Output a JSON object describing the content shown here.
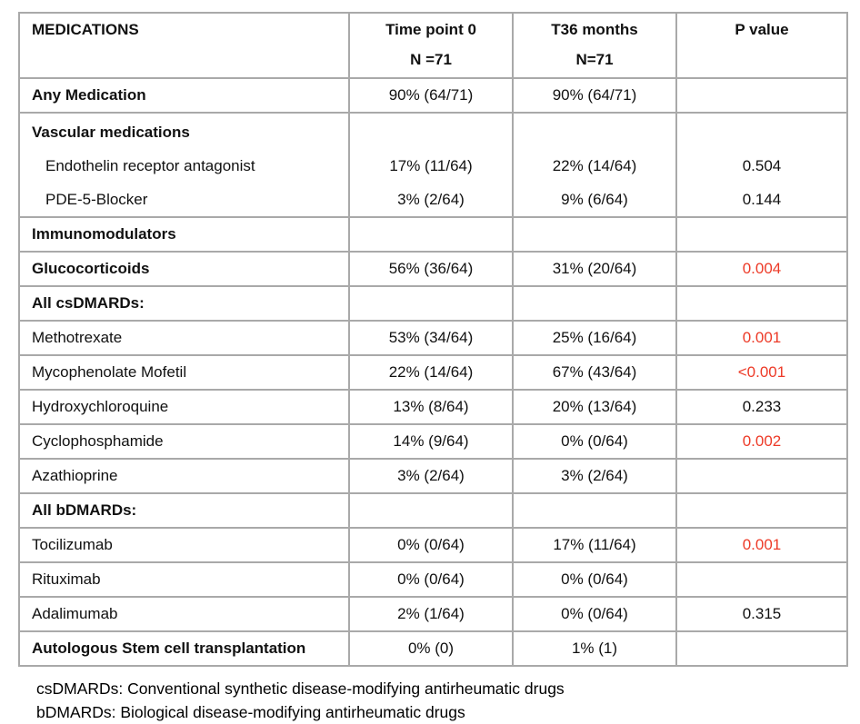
{
  "colors": {
    "p_value_red": "#ed3a27",
    "table_border_gray": "#a9a9a9"
  },
  "table": {
    "headers": {
      "col1": "MEDICATIONS",
      "col2_line1": "Time point 0",
      "col2_line2": "N =71",
      "col3_line1": "T36 months",
      "col3_line2": "N=71",
      "col4": "P value"
    },
    "rows": [
      {
        "style": "section",
        "label": "Any Medication",
        "t0": "90% (64/71)",
        "t36": "90% (64/71)",
        "p": "",
        "p_red": false
      },
      {
        "style": "multi",
        "lines": [
          {
            "style": "section",
            "label": "Vascular medications",
            "t0": "",
            "t36": "",
            "p": "",
            "p_red": false
          },
          {
            "style": "drug",
            "label": "Endothelin receptor antagonist",
            "t0": "17% (11/64)",
            "t36": "22% (14/64)",
            "p": "0.504",
            "p_red": false
          },
          {
            "style": "drug",
            "label": "PDE-5-Blocker",
            "t0": "3% (2/64)",
            "t36": "9% (6/64)",
            "p": "0.144",
            "p_red": false
          }
        ]
      },
      {
        "style": "section",
        "label": "Immunomodulators",
        "t0": "",
        "t36": "",
        "p": "",
        "p_red": false
      },
      {
        "style": "section",
        "label": "Glucocorticoids",
        "t0": "56% (36/64)",
        "t36": "31% (20/64)",
        "p": "0.004",
        "p_red": true
      },
      {
        "style": "section",
        "label": "All csDMARDs:",
        "t0": "",
        "t36": "",
        "p": "",
        "p_red": false
      },
      {
        "style": "drug",
        "label": "Methotrexate",
        "t0": "53% (34/64)",
        "t36": "25% (16/64)",
        "p": "0.001",
        "p_red": true
      },
      {
        "style": "drug",
        "label": "Mycophenolate Mofetil",
        "t0": "22% (14/64)",
        "t36": "67% (43/64)",
        "p": "<0.001",
        "p_red": true
      },
      {
        "style": "drug",
        "label": "Hydroxychloroquine",
        "t0": "13% (8/64)",
        "t36": "20% (13/64)",
        "p": "0.233",
        "p_red": false
      },
      {
        "style": "drug",
        "label": "Cyclophosphamide",
        "t0": "14% (9/64)",
        "t36": "0% (0/64)",
        "p": "0.002",
        "p_red": true
      },
      {
        "style": "drug",
        "label": "Azathioprine",
        "t0": "3% (2/64)",
        "t36": "3% (2/64)",
        "p": "",
        "p_red": false
      },
      {
        "style": "section",
        "label": "All bDMARDs:",
        "t0": "",
        "t36": "",
        "p": "",
        "p_red": false
      },
      {
        "style": "drug",
        "label": "Tocilizumab",
        "t0": "0% (0/64)",
        "t36": "17% (11/64)",
        "p": "0.001",
        "p_red": true
      },
      {
        "style": "drug",
        "label": "Rituximab",
        "t0": "0% (0/64)",
        "t36": "0% (0/64)",
        "p": "",
        "p_red": false
      },
      {
        "style": "drug",
        "label": "Adalimumab",
        "t0": "2% (1/64)",
        "t36": "0% (0/64)",
        "p": "0.315",
        "p_red": false
      },
      {
        "style": "section",
        "label": "Autologous Stem cell transplantation",
        "t0": "0% (0)",
        "t36": "1% (1)",
        "p": "",
        "p_red": false
      }
    ],
    "footnotes": [
      "csDMARDs: Conventional synthetic disease-modifying antirheumatic drugs",
      "bDMARDs: Biological disease-modifying antirheumatic drugs"
    ]
  }
}
